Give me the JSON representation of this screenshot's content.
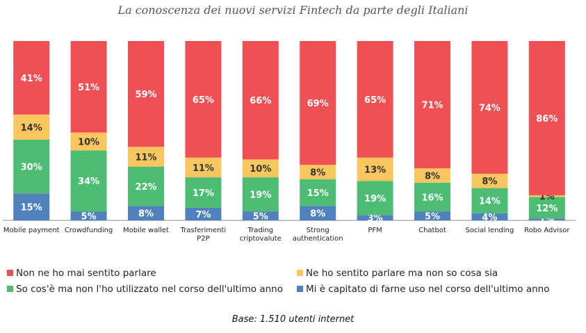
{
  "chart_data": {
    "type": "bar",
    "stacked": true,
    "normalized_100": true,
    "title": "La conoscenza dei nuovi servizi Fintech da parte degli Italiani",
    "categories": [
      "Mobile payment",
      "Crowdfunding",
      "Mobile wallet",
      "Trasferimenti P2P",
      "Trading criptovalute",
      "Strong authentication",
      "PFM",
      "Chatbot",
      "Social lending",
      "Robo Advisor"
    ],
    "category_lines": [
      [
        "Mobile payment"
      ],
      [
        "Crowdfunding"
      ],
      [
        "Mobile wallet"
      ],
      [
        "Trasferimenti",
        "P2P"
      ],
      [
        "Trading",
        "criptovalute"
      ],
      [
        "Strong",
        "authentication"
      ],
      [
        "PFM"
      ],
      [
        "Chatbot"
      ],
      [
        "Social lending"
      ],
      [
        "Robo Advisor"
      ]
    ],
    "series": [
      {
        "name": "Mi è capitato di farne uso nel corso dell'ultimo anno",
        "color": "#4f81bd",
        "values": [
          15,
          5,
          8,
          7,
          5,
          8,
          3,
          5,
          4,
          1
        ]
      },
      {
        "name": "So cos'è ma non l'ho utilizzato nel corso dell'ultimo anno",
        "color": "#4dbd74",
        "values": [
          30,
          34,
          22,
          17,
          19,
          15,
          19,
          16,
          14,
          12
        ]
      },
      {
        "name": "Ne ho sentito parlare ma non so cosa sia",
        "color": "#f9c65f",
        "values": [
          14,
          10,
          11,
          11,
          10,
          8,
          13,
          8,
          8,
          1
        ]
      },
      {
        "name": "Non ne ho mai sentito parlare",
        "color": "#ef5055",
        "values": [
          41,
          51,
          59,
          65,
          66,
          69,
          65,
          71,
          74,
          86
        ]
      }
    ],
    "value_suffix": "%",
    "ylim": [
      0,
      100
    ],
    "grid": false,
    "legend_position": "bottom"
  },
  "note": "Base: 1.510 utenti internet"
}
